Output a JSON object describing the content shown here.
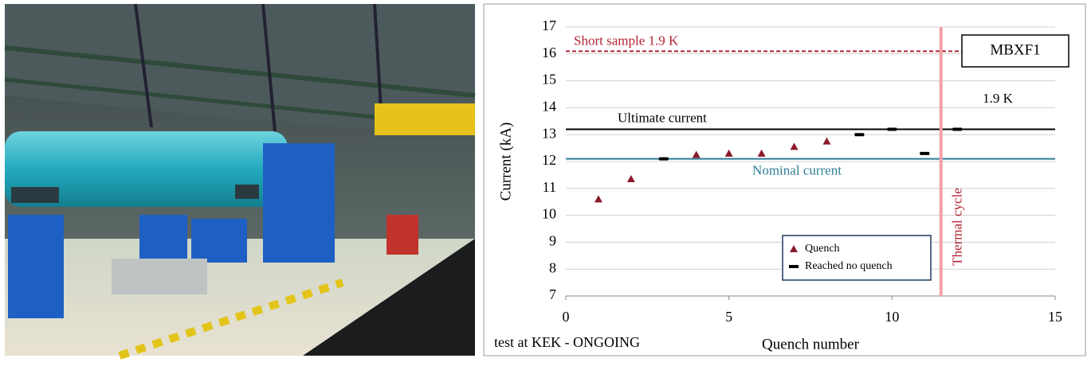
{
  "chart_data": {
    "type": "scatter",
    "xlabel": "Quench number",
    "ylabel": "Current (kA)",
    "xlim": [
      0,
      15
    ],
    "xticks": [
      0,
      5,
      10,
      15
    ],
    "ylim": [
      7,
      17
    ],
    "yticks": [
      7,
      8,
      9,
      10,
      11,
      12,
      13,
      14,
      15,
      16,
      17
    ],
    "grid": true,
    "series": [
      {
        "name": "Quench",
        "color": "#8b1a2b",
        "marker": "triangle",
        "x": [
          1,
          2,
          4,
          5,
          6,
          7,
          8
        ],
        "values": [
          10.6,
          11.35,
          12.25,
          12.3,
          12.3,
          12.55,
          12.75
        ]
      },
      {
        "name": "Reached no quench",
        "color": "#000000",
        "marker": "dash",
        "x": [
          3,
          9,
          10,
          11,
          12
        ],
        "values": [
          12.1,
          13.0,
          13.2,
          12.3,
          13.2
        ]
      }
    ],
    "reference_lines": [
      {
        "name": "Short sample 1.9 K",
        "value": 16.1,
        "color": "#b22234",
        "style": "dashed"
      },
      {
        "name": "Ultimate current",
        "value": 13.2,
        "color": "#000000",
        "style": "solid"
      },
      {
        "name": "Nominal current",
        "value": 12.1,
        "color": "#2e7d96",
        "style": "solid"
      }
    ],
    "vertical_lines": [
      {
        "name": "Thermal cycle",
        "x": 11.5,
        "color": "#f4a0a8"
      }
    ],
    "annotations": [
      "MBXF1",
      "1.9 K",
      "test at KEK - ONGOING"
    ]
  }
}
